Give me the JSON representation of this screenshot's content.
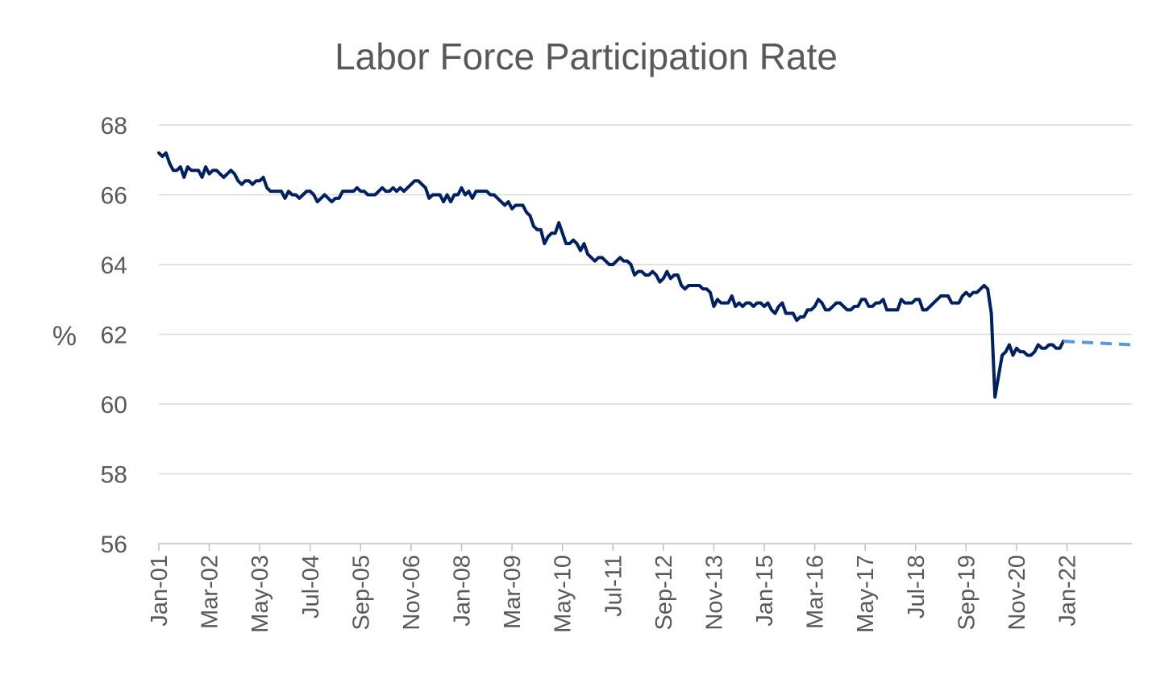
{
  "chart_data": {
    "type": "line",
    "title": "Labor Force Participation Rate",
    "ylabel": "%",
    "xlabel": "",
    "ylim": [
      56,
      68
    ],
    "yticks": [
      56,
      58,
      60,
      62,
      64,
      66,
      68
    ],
    "xlim": [
      "2001-01",
      "2023-07"
    ],
    "x_tick_labels": [
      "Jan-01",
      "Mar-02",
      "May-03",
      "Jul-04",
      "Sep-05",
      "Nov-06",
      "Jan-08",
      "Mar-09",
      "May-10",
      "Jul-11",
      "Sep-12",
      "Nov-13",
      "Jan-15",
      "Mar-16",
      "May-17",
      "Jul-18",
      "Sep-19",
      "Nov-20",
      "Jan-22"
    ],
    "x_tick_dates": [
      "2001-01",
      "2002-03",
      "2003-05",
      "2004-07",
      "2005-09",
      "2006-11",
      "2008-01",
      "2009-03",
      "2010-05",
      "2011-07",
      "2012-09",
      "2013-11",
      "2015-01",
      "2016-03",
      "2017-05",
      "2018-07",
      "2019-09",
      "2020-11",
      "2022-01"
    ],
    "grid": true,
    "legend": "none",
    "series": [
      {
        "style": "solid",
        "color": "#002060",
        "points": [
          [
            "2001-01",
            67.2
          ],
          [
            "2001-02",
            67.1
          ],
          [
            "2001-03",
            67.2
          ],
          [
            "2001-04",
            66.9
          ],
          [
            "2001-05",
            66.7
          ],
          [
            "2001-06",
            66.7
          ],
          [
            "2001-07",
            66.8
          ],
          [
            "2001-08",
            66.5
          ],
          [
            "2001-09",
            66.8
          ],
          [
            "2001-10",
            66.7
          ],
          [
            "2001-11",
            66.7
          ],
          [
            "2001-12",
            66.7
          ],
          [
            "2002-01",
            66.5
          ],
          [
            "2002-02",
            66.8
          ],
          [
            "2002-03",
            66.6
          ],
          [
            "2002-04",
            66.7
          ],
          [
            "2002-05",
            66.7
          ],
          [
            "2002-06",
            66.6
          ],
          [
            "2002-07",
            66.5
          ],
          [
            "2002-08",
            66.6
          ],
          [
            "2002-09",
            66.7
          ],
          [
            "2002-10",
            66.6
          ],
          [
            "2002-11",
            66.4
          ],
          [
            "2002-12",
            66.3
          ],
          [
            "2003-01",
            66.4
          ],
          [
            "2003-02",
            66.4
          ],
          [
            "2003-03",
            66.3
          ],
          [
            "2003-04",
            66.4
          ],
          [
            "2003-05",
            66.4
          ],
          [
            "2003-06",
            66.5
          ],
          [
            "2003-07",
            66.2
          ],
          [
            "2003-08",
            66.1
          ],
          [
            "2003-09",
            66.1
          ],
          [
            "2003-10",
            66.1
          ],
          [
            "2003-11",
            66.1
          ],
          [
            "2003-12",
            65.9
          ],
          [
            "2004-01",
            66.1
          ],
          [
            "2004-02",
            66.0
          ],
          [
            "2004-03",
            66.0
          ],
          [
            "2004-04",
            65.9
          ],
          [
            "2004-05",
            66.0
          ],
          [
            "2004-06",
            66.1
          ],
          [
            "2004-07",
            66.1
          ],
          [
            "2004-08",
            66.0
          ],
          [
            "2004-09",
            65.8
          ],
          [
            "2004-10",
            65.9
          ],
          [
            "2004-11",
            66.0
          ],
          [
            "2004-12",
            65.9
          ],
          [
            "2005-01",
            65.8
          ],
          [
            "2005-02",
            65.9
          ],
          [
            "2005-03",
            65.9
          ],
          [
            "2005-04",
            66.1
          ],
          [
            "2005-05",
            66.1
          ],
          [
            "2005-06",
            66.1
          ],
          [
            "2005-07",
            66.1
          ],
          [
            "2005-08",
            66.2
          ],
          [
            "2005-09",
            66.1
          ],
          [
            "2005-10",
            66.1
          ],
          [
            "2005-11",
            66.0
          ],
          [
            "2005-12",
            66.0
          ],
          [
            "2006-01",
            66.0
          ],
          [
            "2006-02",
            66.1
          ],
          [
            "2006-03",
            66.2
          ],
          [
            "2006-04",
            66.1
          ],
          [
            "2006-05",
            66.1
          ],
          [
            "2006-06",
            66.2
          ],
          [
            "2006-07",
            66.1
          ],
          [
            "2006-08",
            66.2
          ],
          [
            "2006-09",
            66.1
          ],
          [
            "2006-10",
            66.2
          ],
          [
            "2006-11",
            66.3
          ],
          [
            "2006-12",
            66.4
          ],
          [
            "2007-01",
            66.4
          ],
          [
            "2007-02",
            66.3
          ],
          [
            "2007-03",
            66.2
          ],
          [
            "2007-04",
            65.9
          ],
          [
            "2007-05",
            66.0
          ],
          [
            "2007-06",
            66.0
          ],
          [
            "2007-07",
            66.0
          ],
          [
            "2007-08",
            65.8
          ],
          [
            "2007-09",
            66.0
          ],
          [
            "2007-10",
            65.8
          ],
          [
            "2007-11",
            66.0
          ],
          [
            "2007-12",
            66.0
          ],
          [
            "2008-01",
            66.2
          ],
          [
            "2008-02",
            66.0
          ],
          [
            "2008-03",
            66.1
          ],
          [
            "2008-04",
            65.9
          ],
          [
            "2008-05",
            66.1
          ],
          [
            "2008-06",
            66.1
          ],
          [
            "2008-07",
            66.1
          ],
          [
            "2008-08",
            66.1
          ],
          [
            "2008-09",
            66.0
          ],
          [
            "2008-10",
            66.0
          ],
          [
            "2008-11",
            65.9
          ],
          [
            "2008-12",
            65.8
          ],
          [
            "2009-01",
            65.7
          ],
          [
            "2009-02",
            65.8
          ],
          [
            "2009-03",
            65.6
          ],
          [
            "2009-04",
            65.7
          ],
          [
            "2009-05",
            65.7
          ],
          [
            "2009-06",
            65.7
          ],
          [
            "2009-07",
            65.5
          ],
          [
            "2009-08",
            65.4
          ],
          [
            "2009-09",
            65.1
          ],
          [
            "2009-10",
            65.0
          ],
          [
            "2009-11",
            65.0
          ],
          [
            "2009-12",
            64.6
          ],
          [
            "2010-01",
            64.8
          ],
          [
            "2010-02",
            64.9
          ],
          [
            "2010-03",
            64.9
          ],
          [
            "2010-04",
            65.2
          ],
          [
            "2010-05",
            64.9
          ],
          [
            "2010-06",
            64.6
          ],
          [
            "2010-07",
            64.6
          ],
          [
            "2010-08",
            64.7
          ],
          [
            "2010-09",
            64.6
          ],
          [
            "2010-10",
            64.4
          ],
          [
            "2010-11",
            64.6
          ],
          [
            "2010-12",
            64.3
          ],
          [
            "2011-01",
            64.2
          ],
          [
            "2011-02",
            64.1
          ],
          [
            "2011-03",
            64.2
          ],
          [
            "2011-04",
            64.2
          ],
          [
            "2011-05",
            64.1
          ],
          [
            "2011-06",
            64.0
          ],
          [
            "2011-07",
            64.0
          ],
          [
            "2011-08",
            64.1
          ],
          [
            "2011-09",
            64.2
          ],
          [
            "2011-10",
            64.1
          ],
          [
            "2011-11",
            64.1
          ],
          [
            "2011-12",
            64.0
          ],
          [
            "2012-01",
            63.7
          ],
          [
            "2012-02",
            63.8
          ],
          [
            "2012-03",
            63.8
          ],
          [
            "2012-04",
            63.7
          ],
          [
            "2012-05",
            63.7
          ],
          [
            "2012-06",
            63.8
          ],
          [
            "2012-07",
            63.7
          ],
          [
            "2012-08",
            63.5
          ],
          [
            "2012-09",
            63.6
          ],
          [
            "2012-10",
            63.8
          ],
          [
            "2012-11",
            63.6
          ],
          [
            "2012-12",
            63.7
          ],
          [
            "2013-01",
            63.7
          ],
          [
            "2013-02",
            63.4
          ],
          [
            "2013-03",
            63.3
          ],
          [
            "2013-04",
            63.4
          ],
          [
            "2013-05",
            63.4
          ],
          [
            "2013-06",
            63.4
          ],
          [
            "2013-07",
            63.4
          ],
          [
            "2013-08",
            63.3
          ],
          [
            "2013-09",
            63.3
          ],
          [
            "2013-10",
            63.2
          ],
          [
            "2013-11",
            62.8
          ],
          [
            "2013-12",
            63.0
          ],
          [
            "2014-01",
            62.9
          ],
          [
            "2014-02",
            62.9
          ],
          [
            "2014-03",
            62.9
          ],
          [
            "2014-04",
            63.1
          ],
          [
            "2014-05",
            62.8
          ],
          [
            "2014-06",
            62.9
          ],
          [
            "2014-07",
            62.8
          ],
          [
            "2014-08",
            62.9
          ],
          [
            "2014-09",
            62.9
          ],
          [
            "2014-10",
            62.8
          ],
          [
            "2014-11",
            62.9
          ],
          [
            "2014-12",
            62.9
          ],
          [
            "2015-01",
            62.8
          ],
          [
            "2015-02",
            62.9
          ],
          [
            "2015-03",
            62.7
          ],
          [
            "2015-04",
            62.6
          ],
          [
            "2015-05",
            62.8
          ],
          [
            "2015-06",
            62.9
          ],
          [
            "2015-07",
            62.6
          ],
          [
            "2015-08",
            62.6
          ],
          [
            "2015-09",
            62.6
          ],
          [
            "2015-10",
            62.4
          ],
          [
            "2015-11",
            62.5
          ],
          [
            "2015-12",
            62.5
          ],
          [
            "2016-01",
            62.7
          ],
          [
            "2016-02",
            62.7
          ],
          [
            "2016-03",
            62.8
          ],
          [
            "2016-04",
            63.0
          ],
          [
            "2016-05",
            62.9
          ],
          [
            "2016-06",
            62.7
          ],
          [
            "2016-07",
            62.7
          ],
          [
            "2016-08",
            62.8
          ],
          [
            "2016-09",
            62.9
          ],
          [
            "2016-10",
            62.9
          ],
          [
            "2016-11",
            62.8
          ],
          [
            "2016-12",
            62.7
          ],
          [
            "2017-01",
            62.7
          ],
          [
            "2017-02",
            62.8
          ],
          [
            "2017-03",
            62.8
          ],
          [
            "2017-04",
            63.0
          ],
          [
            "2017-05",
            63.0
          ],
          [
            "2017-06",
            62.8
          ],
          [
            "2017-07",
            62.8
          ],
          [
            "2017-08",
            62.9
          ],
          [
            "2017-09",
            62.9
          ],
          [
            "2017-10",
            63.0
          ],
          [
            "2017-11",
            62.7
          ],
          [
            "2017-12",
            62.7
          ],
          [
            "2018-01",
            62.7
          ],
          [
            "2018-02",
            62.7
          ],
          [
            "2018-03",
            63.0
          ],
          [
            "2018-04",
            62.9
          ],
          [
            "2018-05",
            62.9
          ],
          [
            "2018-06",
            62.9
          ],
          [
            "2018-07",
            63.0
          ],
          [
            "2018-08",
            63.0
          ],
          [
            "2018-09",
            62.7
          ],
          [
            "2018-10",
            62.7
          ],
          [
            "2018-11",
            62.8
          ],
          [
            "2018-12",
            62.9
          ],
          [
            "2019-01",
            63.0
          ],
          [
            "2019-02",
            63.1
          ],
          [
            "2019-03",
            63.1
          ],
          [
            "2019-04",
            63.1
          ],
          [
            "2019-05",
            62.9
          ],
          [
            "2019-06",
            62.9
          ],
          [
            "2019-07",
            62.9
          ],
          [
            "2019-08",
            63.1
          ],
          [
            "2019-09",
            63.2
          ],
          [
            "2019-10",
            63.1
          ],
          [
            "2019-11",
            63.2
          ],
          [
            "2019-12",
            63.2
          ],
          [
            "2020-01",
            63.3
          ],
          [
            "2020-02",
            63.4
          ],
          [
            "2020-03",
            63.3
          ],
          [
            "2020-04",
            62.6
          ],
          [
            "2020-05",
            60.2
          ],
          [
            "2020-06",
            60.8
          ],
          [
            "2020-07",
            61.4
          ],
          [
            "2020-08",
            61.5
          ],
          [
            "2020-09",
            61.7
          ],
          [
            "2020-10",
            61.4
          ],
          [
            "2020-11",
            61.6
          ],
          [
            "2020-12",
            61.5
          ],
          [
            "2021-01",
            61.5
          ],
          [
            "2021-02",
            61.4
          ],
          [
            "2021-03",
            61.4
          ],
          [
            "2021-04",
            61.5
          ],
          [
            "2021-05",
            61.7
          ],
          [
            "2021-06",
            61.6
          ],
          [
            "2021-07",
            61.6
          ],
          [
            "2021-08",
            61.7
          ],
          [
            "2021-09",
            61.7
          ],
          [
            "2021-10",
            61.6
          ],
          [
            "2021-11",
            61.6
          ],
          [
            "2021-12",
            61.8
          ]
        ]
      },
      {
        "style": "dashed",
        "color": "#5b9bd5",
        "points": [
          [
            "2021-12",
            61.8
          ],
          [
            "2023-07",
            61.7
          ]
        ]
      }
    ]
  }
}
